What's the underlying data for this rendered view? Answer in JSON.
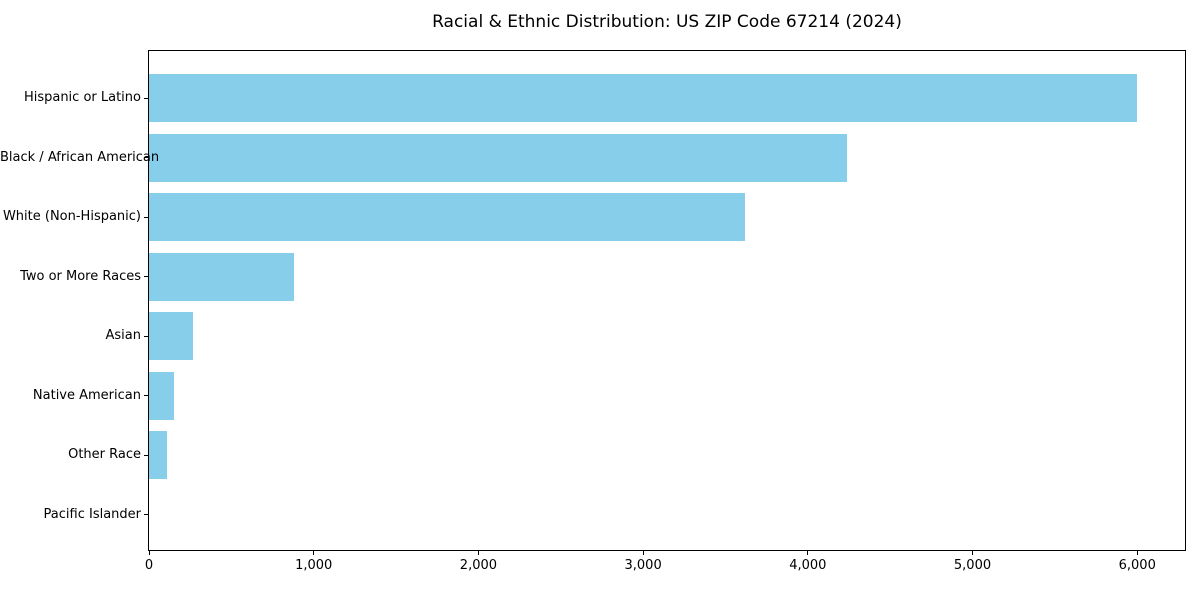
{
  "chart_data": {
    "type": "bar",
    "orientation": "horizontal",
    "title": "Racial & Ethnic Distribution: US ZIP Code 67214 (2024)",
    "categories": [
      "Hispanic or Latino",
      "Black / African American",
      "White (Non-Hispanic)",
      "Two or More Races",
      "Asian",
      "Native American",
      "Other Race",
      "Pacific Islander"
    ],
    "values": [
      6000,
      4240,
      3620,
      880,
      270,
      150,
      110,
      0
    ],
    "xlabel": "",
    "ylabel": "",
    "xlim": [
      0,
      6290
    ],
    "xticks": [
      0,
      1000,
      2000,
      3000,
      4000,
      5000,
      6000
    ],
    "xtick_labels": [
      "0",
      "1,000",
      "2,000",
      "3,000",
      "4,000",
      "5,000",
      "6,000"
    ],
    "grid": false,
    "legend": null,
    "bar_color": "#87CEEB",
    "axis_color": "#000000",
    "background_color": "#FFFFFF"
  }
}
